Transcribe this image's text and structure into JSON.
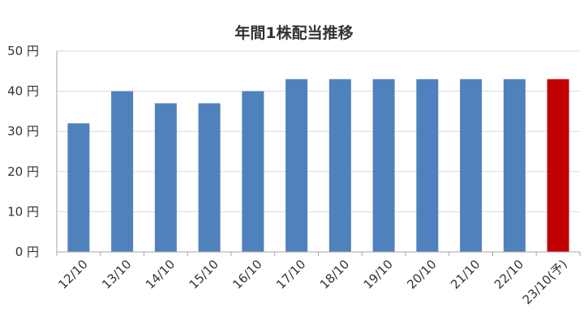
{
  "chart_data": {
    "type": "bar",
    "title": "年間1株配当推移",
    "categories": [
      "12/10",
      "13/10",
      "14/10",
      "15/10",
      "16/10",
      "17/10",
      "18/10",
      "19/10",
      "20/10",
      "21/10",
      "22/10",
      "23/10(予)"
    ],
    "values": [
      32,
      40,
      37,
      37,
      40,
      43,
      43,
      43,
      43,
      43,
      43,
      43
    ],
    "ylim": [
      0,
      50
    ],
    "yticks": [
      0,
      10,
      20,
      30,
      40,
      50
    ],
    "ytick_labels": [
      "0 円",
      "10 円",
      "20 円",
      "30 円",
      "40 円",
      "50 円"
    ],
    "xlabel": "",
    "ylabel": "",
    "grid": true,
    "colors": {
      "bar": "#4F81BD",
      "forecast_bar": "#C00000",
      "grid": "#D9D9D9",
      "axis": "#A6A6A6"
    },
    "highlight_index": 11
  }
}
